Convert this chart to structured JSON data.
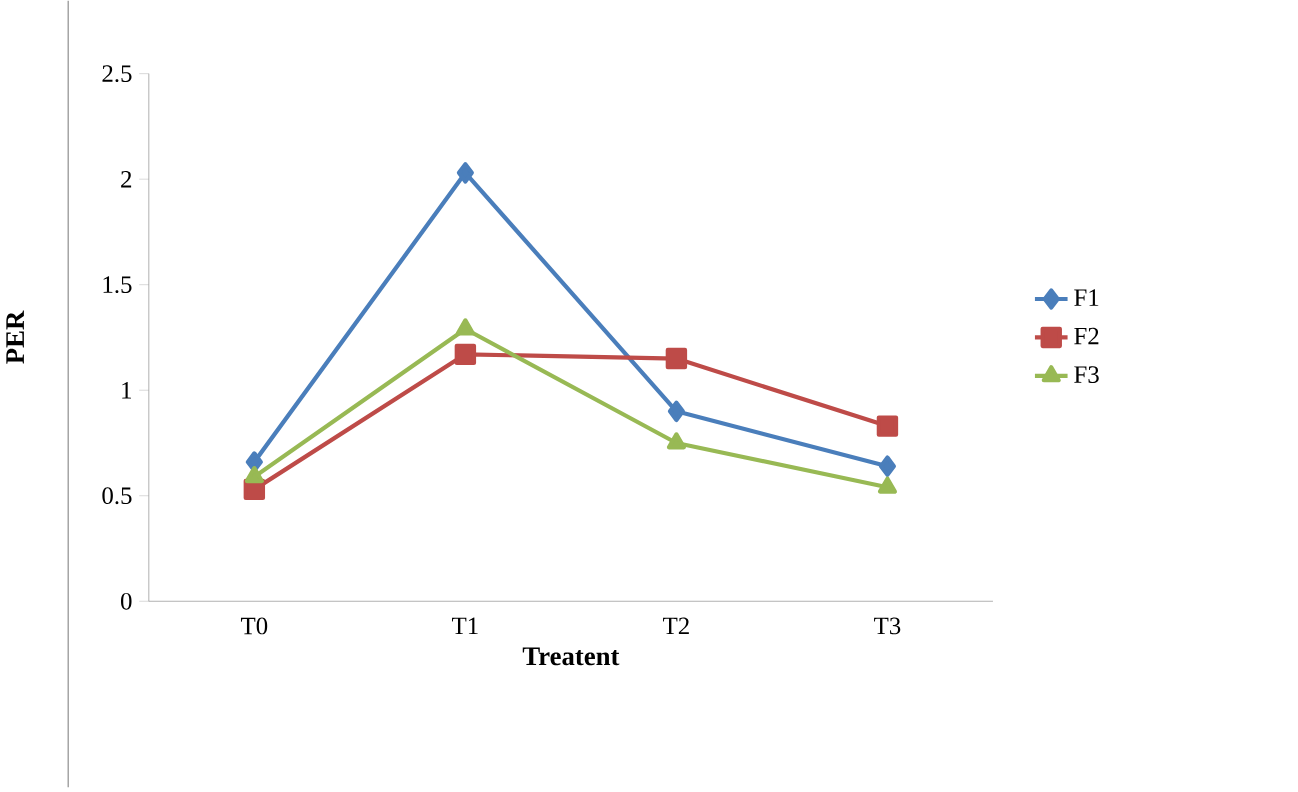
{
  "chart_data": {
    "type": "line",
    "xlabel": "Treatent",
    "ylabel": "PER",
    "categories": [
      "T0",
      "T1",
      "T2",
      "T3"
    ],
    "series": [
      {
        "name": "F1",
        "color": "#4a7ebb",
        "marker": "diamond",
        "values": [
          0.66,
          2.03,
          0.9,
          0.64
        ]
      },
      {
        "name": "F2",
        "color": "#be4b48",
        "marker": "square",
        "values": [
          0.53,
          1.17,
          1.15,
          0.83
        ]
      },
      {
        "name": "F3",
        "color": "#98b954",
        "marker": "triangle",
        "values": [
          0.59,
          1.29,
          0.75,
          0.54
        ]
      }
    ],
    "ylim": [
      0,
      2.5
    ],
    "yticks": [
      0,
      0.5,
      1,
      1.5,
      2,
      2.5
    ],
    "grid": false,
    "legend": "right",
    "line_style": "solid"
  }
}
